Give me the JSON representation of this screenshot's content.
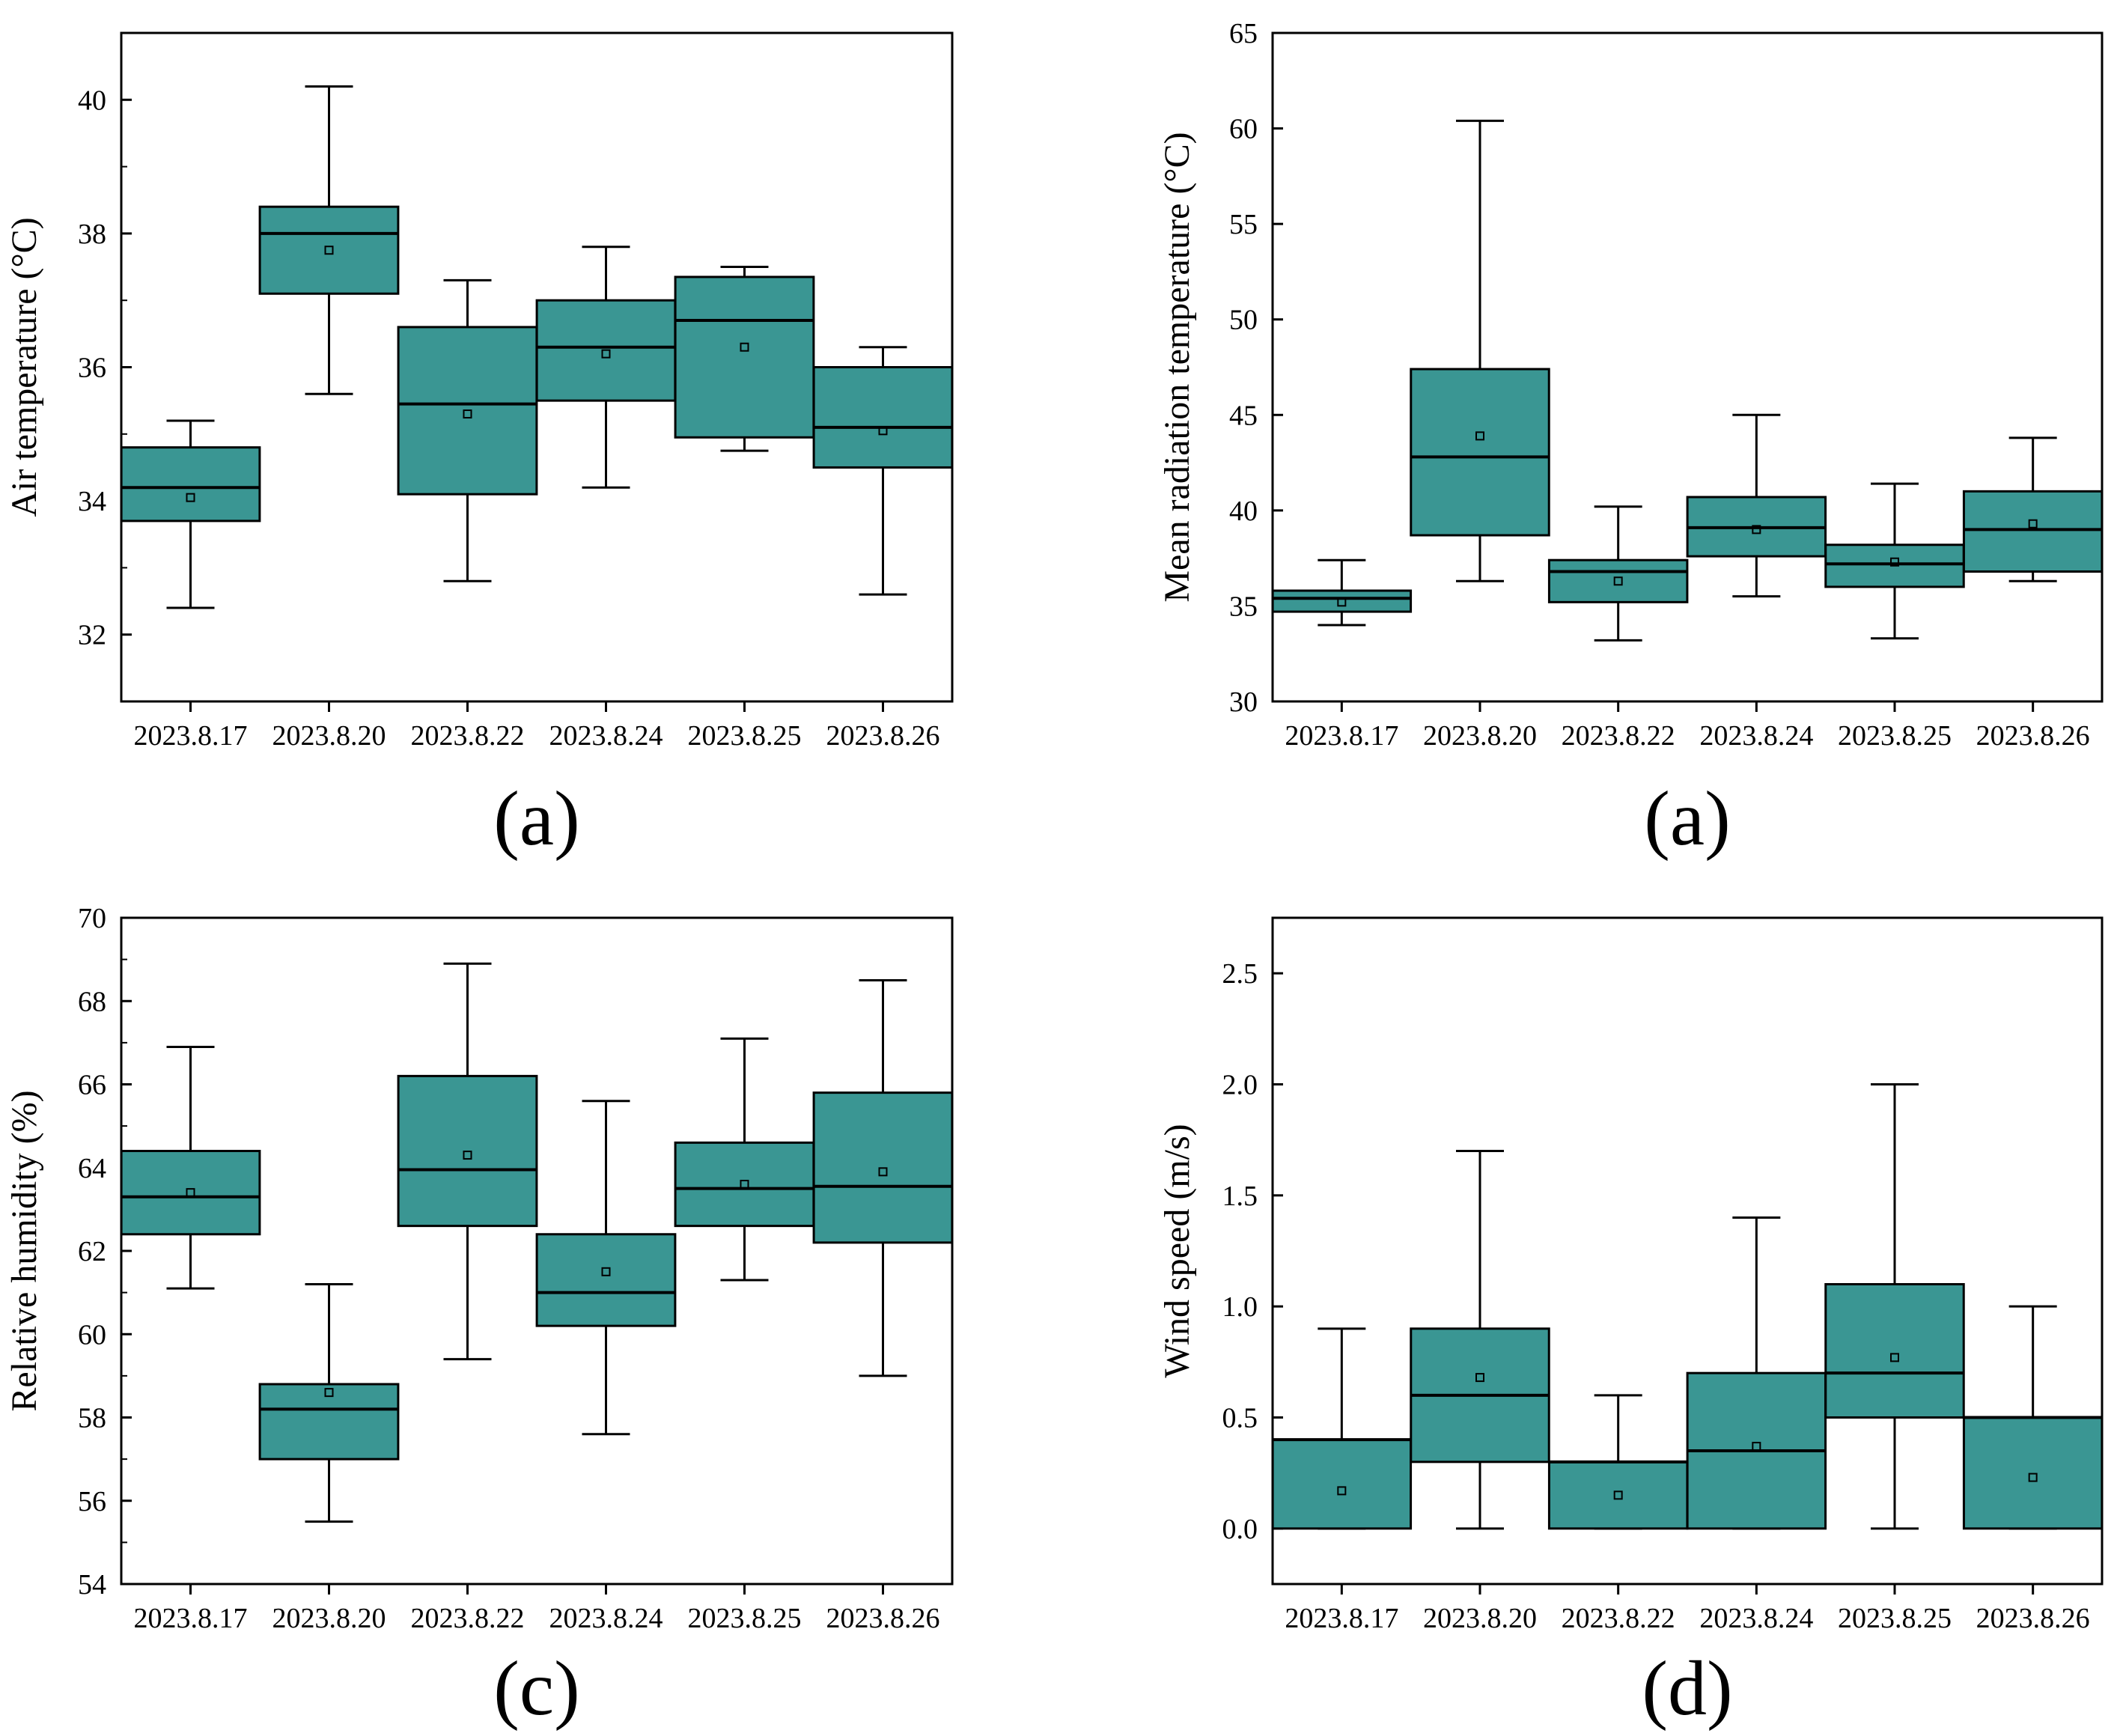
{
  "style": {
    "box_fill": "#3a9693",
    "stroke": "#000000"
  },
  "panels": [
    {
      "id": "air-temperature",
      "letter": "(a)",
      "chart_data": {
        "type": "box",
        "ylabel": "Air temperature (°C)",
        "xlabel": "",
        "ylim": [
          31,
          41
        ],
        "yticks": [
          32,
          34,
          36,
          38,
          40
        ],
        "minor_step": 1,
        "categories": [
          "2023.8.17",
          "2023.8.20",
          "2023.8.22",
          "2023.8.24",
          "2023.8.25",
          "2023.8.26"
        ],
        "boxes": [
          {
            "min": 32.4,
            "q1": 33.7,
            "median": 34.2,
            "q3": 34.8,
            "max": 35.2,
            "mean": 34.05
          },
          {
            "min": 35.6,
            "q1": 37.1,
            "median": 38.0,
            "q3": 38.4,
            "max": 40.2,
            "mean": 37.75
          },
          {
            "min": 32.8,
            "q1": 34.1,
            "median": 35.45,
            "q3": 36.6,
            "max": 37.3,
            "mean": 35.3
          },
          {
            "min": 34.2,
            "q1": 35.5,
            "median": 36.3,
            "q3": 37.0,
            "max": 37.8,
            "mean": 36.2
          },
          {
            "min": 34.75,
            "q1": 34.95,
            "median": 36.7,
            "q3": 37.35,
            "max": 37.5,
            "mean": 36.3
          },
          {
            "min": 32.6,
            "q1": 34.5,
            "median": 35.1,
            "q3": 36.0,
            "max": 36.3,
            "mean": 35.05
          }
        ]
      }
    },
    {
      "id": "mean-radiation-temperature",
      "letter": "(a)",
      "chart_data": {
        "type": "box",
        "ylabel": "Mean radiation temperature (°C)",
        "xlabel": "",
        "ylim": [
          30,
          65
        ],
        "yticks": [
          30,
          35,
          40,
          45,
          50,
          55,
          60,
          65
        ],
        "minor_step": 0,
        "categories": [
          "2023.8.17",
          "2023.8.20",
          "2023.8.22",
          "2023.8.24",
          "2023.8.25",
          "2023.8.26"
        ],
        "boxes": [
          {
            "min": 34.0,
            "q1": 34.7,
            "median": 35.4,
            "q3": 35.8,
            "max": 37.4,
            "mean": 35.2
          },
          {
            "min": 36.3,
            "q1": 38.7,
            "median": 42.8,
            "q3": 47.4,
            "max": 60.4,
            "mean": 43.9
          },
          {
            "min": 33.2,
            "q1": 35.2,
            "median": 36.8,
            "q3": 37.4,
            "max": 40.2,
            "mean": 36.3
          },
          {
            "min": 35.5,
            "q1": 37.6,
            "median": 39.1,
            "q3": 40.7,
            "max": 45.0,
            "mean": 39.0
          },
          {
            "min": 33.3,
            "q1": 36.0,
            "median": 37.2,
            "q3": 38.2,
            "max": 41.4,
            "mean": 37.3
          },
          {
            "min": 36.3,
            "q1": 36.8,
            "median": 39.0,
            "q3": 41.0,
            "max": 43.8,
            "mean": 39.3
          }
        ]
      }
    },
    {
      "id": "relative-humidity",
      "letter": "(c)",
      "chart_data": {
        "type": "box",
        "ylabel": "Relative humidity (%)",
        "xlabel": "",
        "ylim": [
          54,
          70
        ],
        "yticks": [
          54,
          56,
          58,
          60,
          62,
          64,
          66,
          68,
          70
        ],
        "minor_step": 1,
        "categories": [
          "2023.8.17",
          "2023.8.20",
          "2023.8.22",
          "2023.8.24",
          "2023.8.25",
          "2023.8.26"
        ],
        "boxes": [
          {
            "min": 61.1,
            "q1": 62.4,
            "median": 63.3,
            "q3": 64.4,
            "max": 66.9,
            "mean": 63.4
          },
          {
            "min": 55.5,
            "q1": 57.0,
            "median": 58.2,
            "q3": 58.8,
            "max": 61.2,
            "mean": 58.6
          },
          {
            "min": 59.4,
            "q1": 62.6,
            "median": 63.95,
            "q3": 66.2,
            "max": 68.9,
            "mean": 64.3
          },
          {
            "min": 57.6,
            "q1": 60.2,
            "median": 61.0,
            "q3": 62.4,
            "max": 65.6,
            "mean": 61.5
          },
          {
            "min": 61.3,
            "q1": 62.6,
            "median": 63.5,
            "q3": 64.6,
            "max": 67.1,
            "mean": 63.6
          },
          {
            "min": 59.0,
            "q1": 62.2,
            "median": 63.55,
            "q3": 65.8,
            "max": 68.5,
            "mean": 63.9
          }
        ]
      }
    },
    {
      "id": "wind-speed",
      "letter": "(d)",
      "chart_data": {
        "type": "box",
        "ylabel": "Wind speed (m/s)",
        "xlabel": "",
        "ylim": [
          -0.25,
          2.75
        ],
        "yticks": [
          0.0,
          0.5,
          1.0,
          1.5,
          2.0,
          2.5
        ],
        "tick_decimals": 1,
        "minor_step": 0,
        "categories": [
          "2023.8.17",
          "2023.8.20",
          "2023.8.22",
          "2023.8.24",
          "2023.8.25",
          "2023.8.26"
        ],
        "boxes": [
          {
            "min": 0.0,
            "q1": 0.0,
            "median": 0.4,
            "q3": 0.4,
            "max": 0.9,
            "mean": 0.17
          },
          {
            "min": 0.0,
            "q1": 0.3,
            "median": 0.6,
            "q3": 0.9,
            "max": 1.7,
            "mean": 0.68
          },
          {
            "min": 0.0,
            "q1": 0.0,
            "median": 0.3,
            "q3": 0.3,
            "max": 0.6,
            "mean": 0.15
          },
          {
            "min": 0.0,
            "q1": 0.0,
            "median": 0.35,
            "q3": 0.7,
            "max": 1.4,
            "mean": 0.37
          },
          {
            "min": 0.0,
            "q1": 0.5,
            "median": 0.7,
            "q3": 1.1,
            "max": 2.0,
            "mean": 0.77
          },
          {
            "min": 0.0,
            "q1": 0.0,
            "median": 0.5,
            "q3": 0.5,
            "max": 1.0,
            "mean": 0.23
          }
        ]
      }
    }
  ]
}
